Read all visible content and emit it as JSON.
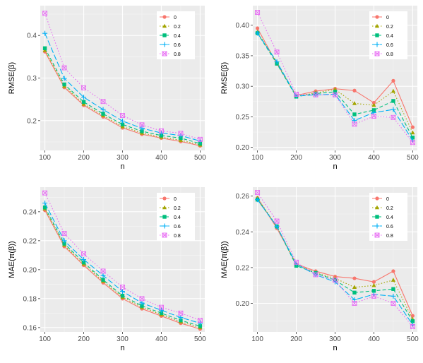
{
  "chart_data": [
    {
      "type": "line",
      "xlabel": "n",
      "ylabel": "RMSE(β)",
      "x": [
        100,
        150,
        200,
        250,
        300,
        350,
        400,
        450,
        500
      ],
      "xticks": [
        100,
        200,
        300,
        400,
        500
      ],
      "xlim": [
        88,
        512
      ],
      "yticks": [
        0.2,
        0.3,
        0.4
      ],
      "ylim": [
        0.13,
        0.47
      ],
      "legend_position": "top-right",
      "grid": true,
      "series": [
        {
          "name": "0",
          "values": [
            0.362,
            0.278,
            0.236,
            0.209,
            0.183,
            0.168,
            0.159,
            0.151,
            0.141
          ]
        },
        {
          "name": "0.2",
          "values": [
            0.365,
            0.281,
            0.239,
            0.212,
            0.186,
            0.171,
            0.161,
            0.154,
            0.143
          ]
        },
        {
          "name": "0.4",
          "values": [
            0.37,
            0.285,
            0.244,
            0.216,
            0.191,
            0.175,
            0.165,
            0.159,
            0.146
          ]
        },
        {
          "name": "0.6",
          "values": [
            0.405,
            0.299,
            0.255,
            0.226,
            0.199,
            0.182,
            0.171,
            0.165,
            0.152
          ]
        },
        {
          "name": "0.8",
          "values": [
            0.452,
            0.324,
            0.277,
            0.245,
            0.212,
            0.19,
            0.176,
            0.17,
            0.156
          ]
        }
      ]
    },
    {
      "type": "line",
      "xlabel": "n",
      "ylabel": "RMSE(β)",
      "x": [
        100,
        150,
        200,
        250,
        300,
        350,
        400,
        450,
        500
      ],
      "xticks": [
        100,
        200,
        300,
        400,
        500
      ],
      "xlim": [
        88,
        512
      ],
      "yticks": [
        0.2,
        0.25,
        0.3,
        0.35,
        0.4
      ],
      "ylim": [
        0.195,
        0.432
      ],
      "legend_position": "top-right",
      "grid": true,
      "series": [
        {
          "name": "0",
          "values": [
            0.395,
            0.337,
            0.285,
            0.292,
            0.296,
            0.293,
            0.273,
            0.309,
            0.233
          ]
        },
        {
          "name": "0.2",
          "values": [
            0.389,
            0.339,
            0.284,
            0.289,
            0.295,
            0.272,
            0.269,
            0.292,
            0.224
          ]
        },
        {
          "name": "0.4",
          "values": [
            0.387,
            0.337,
            0.283,
            0.288,
            0.291,
            0.254,
            0.261,
            0.276,
            0.216
          ]
        },
        {
          "name": "0.6",
          "values": [
            0.387,
            0.34,
            0.284,
            0.286,
            0.287,
            0.244,
            0.257,
            0.262,
            0.211
          ]
        },
        {
          "name": "0.8",
          "values": [
            0.421,
            0.356,
            0.287,
            0.286,
            0.286,
            0.238,
            0.251,
            0.249,
            0.208
          ]
        }
      ]
    },
    {
      "type": "line",
      "xlabel": "n",
      "ylabel": "MAE(π(β))",
      "x": [
        100,
        150,
        200,
        250,
        300,
        350,
        400,
        450,
        500
      ],
      "xticks": [
        100,
        200,
        300,
        400,
        500
      ],
      "xlim": [
        88,
        512
      ],
      "yticks": [
        0.16,
        0.18,
        0.2,
        0.22,
        0.24
      ],
      "ylim": [
        0.157,
        0.257
      ],
      "legend_position": "top-right",
      "grid": true,
      "series": [
        {
          "name": "0",
          "values": [
            0.241,
            0.216,
            0.203,
            0.191,
            0.18,
            0.173,
            0.168,
            0.163,
            0.159
          ]
        },
        {
          "name": "0.2",
          "values": [
            0.242,
            0.217,
            0.204,
            0.192,
            0.181,
            0.174,
            0.169,
            0.164,
            0.16
          ]
        },
        {
          "name": "0.4",
          "values": [
            0.243,
            0.218,
            0.205,
            0.193,
            0.182,
            0.175,
            0.17,
            0.165,
            0.161
          ]
        },
        {
          "name": "0.6",
          "values": [
            0.246,
            0.22,
            0.207,
            0.196,
            0.185,
            0.177,
            0.172,
            0.167,
            0.163
          ]
        },
        {
          "name": "0.8",
          "values": [
            0.253,
            0.225,
            0.211,
            0.199,
            0.188,
            0.18,
            0.174,
            0.17,
            0.165
          ]
        }
      ]
    },
    {
      "type": "line",
      "xlabel": "n",
      "ylabel": "MAE(π(β))",
      "x": [
        100,
        150,
        200,
        250,
        300,
        350,
        400,
        450,
        500
      ],
      "xticks": [
        100,
        200,
        300,
        400,
        500
      ],
      "xlim": [
        88,
        512
      ],
      "yticks": [
        0.2,
        0.22,
        0.24,
        0.26
      ],
      "ylim": [
        0.184,
        0.265
      ],
      "legend_position": "top-right",
      "grid": true,
      "series": [
        {
          "name": "0",
          "values": [
            0.259,
            0.242,
            0.222,
            0.218,
            0.215,
            0.214,
            0.212,
            0.218,
            0.193
          ]
        },
        {
          "name": "0.2",
          "values": [
            0.259,
            0.243,
            0.222,
            0.217,
            0.214,
            0.209,
            0.21,
            0.213,
            0.191
          ]
        },
        {
          "name": "0.4",
          "values": [
            0.258,
            0.243,
            0.221,
            0.217,
            0.213,
            0.206,
            0.207,
            0.208,
            0.19
          ]
        },
        {
          "name": "0.6",
          "values": [
            0.258,
            0.243,
            0.222,
            0.216,
            0.212,
            0.202,
            0.205,
            0.204,
            0.188
          ]
        },
        {
          "name": "0.8",
          "values": [
            0.262,
            0.246,
            0.223,
            0.216,
            0.213,
            0.2,
            0.204,
            0.2,
            0.187
          ]
        }
      ]
    }
  ],
  "series_colors": [
    "#F8766D",
    "#A3A500",
    "#00BF7D",
    "#00B0F6",
    "#E76BF3"
  ],
  "series_markers": [
    "circle",
    "triangle",
    "square",
    "plus",
    "boxed-x"
  ],
  "series_dashes": [
    "solid",
    "dotted",
    "dashed",
    "longdash",
    "dotted"
  ]
}
